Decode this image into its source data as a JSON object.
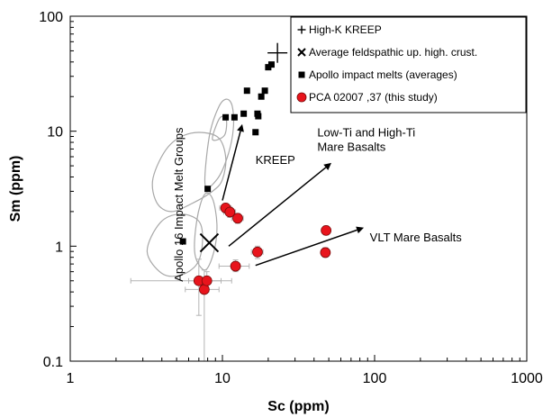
{
  "chart_data": {
    "type": "scatter",
    "xlabel": "Sc (ppm)",
    "ylabel": "Sm (ppm)",
    "xscale": "log",
    "yscale": "log",
    "xlim": [
      1,
      1000
    ],
    "ylim": [
      0.1,
      100
    ],
    "x_tick_labels": [
      "1",
      "10",
      "100",
      "1000"
    ],
    "y_tick_labels": [
      "0.1",
      "1",
      "10",
      "100"
    ],
    "grid": false,
    "legend_placement": "top-right",
    "legend": [
      {
        "label": "High-K KREEP",
        "marker": "plus",
        "color": "#000000"
      },
      {
        "label": "Average feldspathic up. high. crust.",
        "marker": "x",
        "color": "#000000"
      },
      {
        "label": "Apollo impact melts (averages)",
        "marker": "square",
        "color": "#000000"
      },
      {
        "label": "PCA 02007 ,37 (this study)",
        "marker": "circle",
        "color": "#e8141c"
      }
    ],
    "series": [
      {
        "name": "High-K KREEP",
        "marker": "plus",
        "points": [
          {
            "x": 23,
            "y": 48
          }
        ]
      },
      {
        "name": "Average feldspathic up. high. crust.",
        "marker": "x",
        "points": [
          {
            "x": 8.2,
            "y": 1.07
          }
        ]
      },
      {
        "name": "Apollo impact melts (averages)",
        "marker": "square",
        "points": [
          {
            "x": 5.5,
            "y": 1.1
          },
          {
            "x": 8.0,
            "y": 3.15
          },
          {
            "x": 10.5,
            "y": 13.2
          },
          {
            "x": 12.0,
            "y": 13.2
          },
          {
            "x": 13.8,
            "y": 14.2
          },
          {
            "x": 14.5,
            "y": 22.5
          },
          {
            "x": 16.5,
            "y": 9.8
          },
          {
            "x": 17.0,
            "y": 14.2
          },
          {
            "x": 17.2,
            "y": 13.5
          },
          {
            "x": 18.0,
            "y": 20.0
          },
          {
            "x": 19.0,
            "y": 22.5
          },
          {
            "x": 20.0,
            "y": 36.0
          },
          {
            "x": 21.0,
            "y": 38.0
          }
        ]
      },
      {
        "name": "PCA 02007 ,37 (this study)",
        "marker": "circle",
        "points": [
          {
            "x": 7.0,
            "y": 0.5,
            "xerr": [
              2.5,
              11.5
            ],
            "yerr": [
              0.25,
              0.77
            ]
          },
          {
            "x": 7.6,
            "y": 0.42,
            "xerr": [
              5.7,
              9.5
            ],
            "yerr": [
              0.1,
              0.62
            ]
          },
          {
            "x": 7.9,
            "y": 0.5,
            "xerr": [
              6.0,
              9.8
            ],
            "yerr": [
              0.4,
              0.6
            ]
          },
          {
            "x": 10.5,
            "y": 2.15,
            "xerr": [
              9.6,
              11.4
            ],
            "yerr": [
              1.95,
              2.35
            ]
          },
          {
            "x": 11.2,
            "y": 1.98,
            "xerr": [
              10.2,
              12.2
            ],
            "yerr": [
              1.78,
              2.18
            ]
          },
          {
            "x": 12.6,
            "y": 1.75,
            "xerr": [
              11.5,
              13.7
            ],
            "yerr": [
              1.58,
              1.92
            ]
          },
          {
            "x": 12.2,
            "y": 0.67,
            "xerr": [
              9.5,
              15.0
            ],
            "yerr": [
              0.6,
              0.76
            ]
          },
          {
            "x": 17.0,
            "y": 0.89,
            "xerr": [
              15.5,
              18.5
            ],
            "yerr": [
              0.78,
              1.0
            ]
          },
          {
            "x": 48.0,
            "y": 1.37,
            "xerr": [
              46.5,
              49.5
            ],
            "yerr": [
              1.25,
              1.5
            ]
          },
          {
            "x": 47.5,
            "y": 0.88,
            "xerr": [
              46.0,
              49.0
            ],
            "yerr": [
              0.8,
              0.97
            ]
          }
        ]
      }
    ],
    "arrows": [
      {
        "from": {
          "x": 10.0,
          "y": 2.5
        },
        "to": {
          "x": 13.5,
          "y": 11.5
        }
      },
      {
        "from": {
          "x": 11.0,
          "y": 1.0
        },
        "to": {
          "x": 52.0,
          "y": 5.3
        }
      },
      {
        "from": {
          "x": 16.5,
          "y": 0.68
        },
        "to": {
          "x": 85.0,
          "y": 1.45
        }
      }
    ],
    "regions": [
      {
        "name": "Apollo 16 Impact Melt Groups",
        "outlines": [
          [
            [
              4.0,
              0.58
            ],
            [
              3.2,
              0.9
            ],
            [
              3.9,
              1.6
            ],
            [
              5.3,
              1.9
            ],
            [
              7.0,
              1.65
            ],
            [
              7.4,
              1.1
            ],
            [
              6.8,
              0.7
            ],
            [
              5.3,
              0.56
            ]
          ],
          [
            [
              6.6,
              0.85
            ],
            [
              6.8,
              1.7
            ],
            [
              7.6,
              2.8
            ],
            [
              8.6,
              2.6
            ],
            [
              9.2,
              1.55
            ],
            [
              8.8,
              0.9
            ],
            [
              7.7,
              0.62
            ]
          ],
          [
            [
              3.7,
              2.4
            ],
            [
              3.5,
              3.9
            ],
            [
              4.4,
              7.3
            ],
            [
              6.2,
              9.6
            ],
            [
              9.2,
              9.0
            ],
            [
              10.5,
              6.0
            ],
            [
              10.0,
              3.8
            ],
            [
              8.6,
              3.0
            ],
            [
              6.3,
              2.35
            ],
            [
              4.6,
              2.0
            ]
          ],
          [
            [
              7.7,
              3.4
            ],
            [
              8.2,
              9.0
            ],
            [
              9.4,
              16.0
            ],
            [
              10.6,
              19.0
            ],
            [
              11.6,
              16.5
            ],
            [
              11.8,
              10.5
            ],
            [
              10.8,
              6.0
            ],
            [
              9.2,
              3.8
            ]
          ],
          [
            [
              8.6,
              8.5
            ],
            [
              9.6,
              13.0
            ],
            [
              10.6,
              12.6
            ],
            [
              10.3,
              9.2
            ]
          ]
        ]
      }
    ],
    "annotations": [
      {
        "text": "KREEP",
        "x": 16.5,
        "y": 5.2
      },
      {
        "text_lines": [
          "Low-Ti and High-Ti",
          "Mare Basalts"
        ],
        "x": 42.0,
        "y": 9.0
      },
      {
        "text": "VLT Mare Basalts",
        "x": 93.0,
        "y": 1.1
      },
      {
        "text": "Apollo 16 Impact Melt Groups",
        "x": 5.5,
        "y": 2.3,
        "rotation": -90
      }
    ],
    "colors": {
      "circle_fill": "#e8141c",
      "region_stroke": "#a8a8a8",
      "errorbar": "#b4b4b4",
      "marker": "#000000"
    }
  }
}
